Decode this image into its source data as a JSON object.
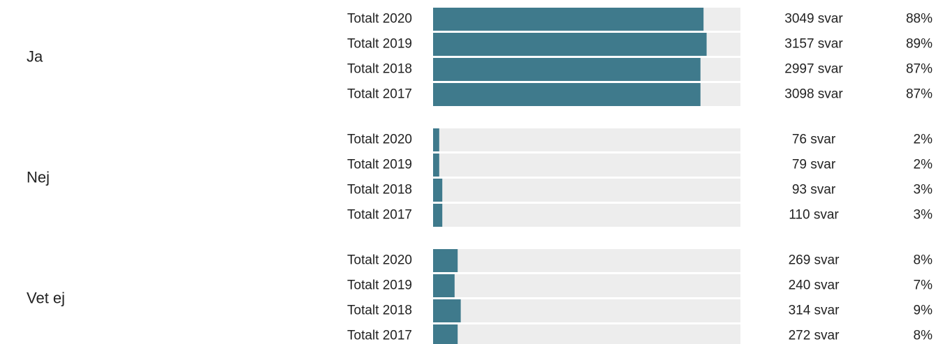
{
  "chart_data": {
    "type": "bar",
    "xlim": [
      0,
      100
    ],
    "color": "#3f7a8c",
    "track_color": "#ededed",
    "groups": [
      {
        "name": "Ja",
        "categories": [
          "Totalt 2020",
          "Totalt 2019",
          "Totalt 2018",
          "Totalt 2017"
        ],
        "values": [
          88,
          89,
          87,
          87
        ],
        "value_labels": [
          "88%",
          "89%",
          "87%",
          "87%"
        ],
        "counts": [
          3049,
          3157,
          2997,
          3098
        ],
        "count_labels": [
          "3049 svar",
          "3157 svar",
          "2997 svar",
          "3098 svar"
        ]
      },
      {
        "name": "Nej",
        "categories": [
          "Totalt 2020",
          "Totalt 2019",
          "Totalt 2018",
          "Totalt 2017"
        ],
        "values": [
          2,
          2,
          3,
          3
        ],
        "value_labels": [
          "2%",
          "2%",
          "3%",
          "3%"
        ],
        "counts": [
          76,
          79,
          93,
          110
        ],
        "count_labels": [
          "76 svar",
          "79 svar",
          "93 svar",
          "110 svar"
        ]
      },
      {
        "name": "Vet ej",
        "categories": [
          "Totalt 2020",
          "Totalt 2019",
          "Totalt 2018",
          "Totalt 2017"
        ],
        "values": [
          8,
          7,
          9,
          8
        ],
        "value_labels": [
          "8%",
          "7%",
          "9%",
          "8%"
        ],
        "counts": [
          269,
          240,
          314,
          272
        ],
        "count_labels": [
          "269 svar",
          "240 svar",
          "314 svar",
          "272 svar"
        ]
      }
    ]
  }
}
